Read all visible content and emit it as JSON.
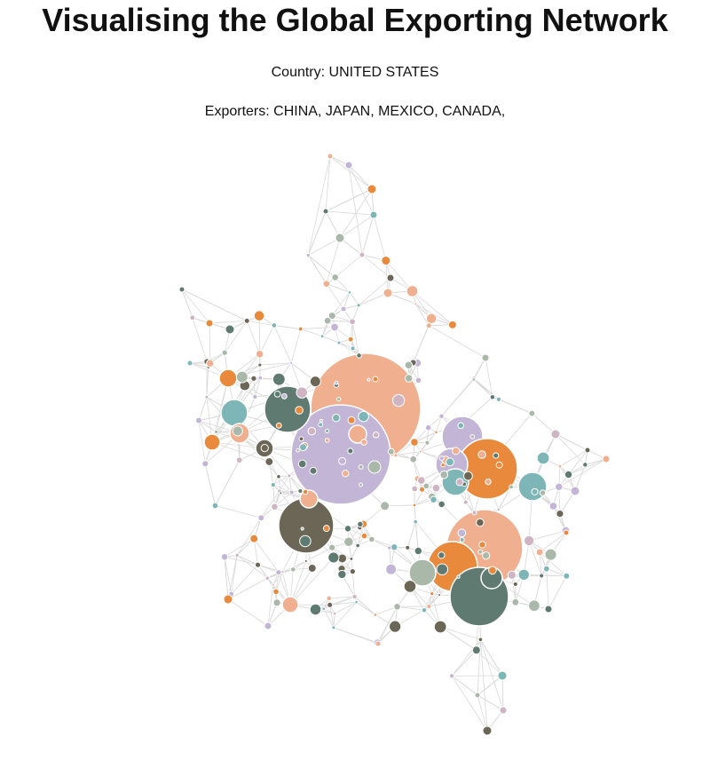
{
  "header": {
    "title": "Visualising the Global Exporting Network",
    "country_label": "Country:",
    "country_value": "UNITED STATES",
    "exporters_label": "Exporters:",
    "exporters_value": "CHINA, JAPAN, MEXICO, CANADA,"
  },
  "palette": {
    "peach": "#f0b08f",
    "lavender": "#c3b5d6",
    "orange": "#e8893b",
    "dark_teal": "#5f7a70",
    "teal": "#7eb6b8",
    "olive": "#6b6655",
    "sage": "#a9b8a8",
    "mauve": "#cfb4c4",
    "edge": "#d9d9d9"
  }
}
